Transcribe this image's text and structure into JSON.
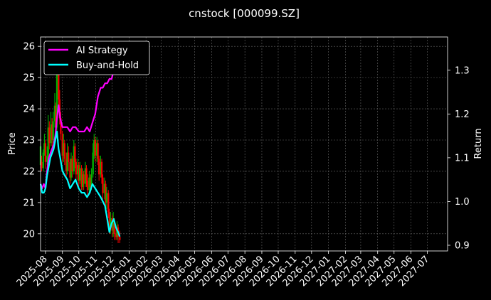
{
  "chart_data": {
    "type": "line",
    "title": "cnstock [000099.SZ]",
    "xlabel": "",
    "ylabel": "Price",
    "y2label": "Return",
    "x_ticks": [
      "2025-08",
      "2025-09",
      "2025-10",
      "2025-11",
      "2025-12",
      "2026-01",
      "2026-02",
      "2026-03",
      "2026-04",
      "2026-05",
      "2026-06",
      "2026-07",
      "2026-08",
      "2026-09",
      "2026-10",
      "2026-11",
      "2026-12",
      "2027-01",
      "2027-02",
      "2027-03",
      "2027-04",
      "2027-05",
      "2027-06",
      "2027-07"
    ],
    "xlim": [
      "2025-07-23",
      "2027-08-07"
    ],
    "ylim": [
      19.45,
      26.3
    ],
    "y_ticks": [
      20,
      21,
      22,
      23,
      24,
      25,
      26
    ],
    "y2lim": [
      0.887,
      1.376
    ],
    "y2_ticks": [
      0.9,
      1.0,
      1.1,
      1.2,
      1.3
    ],
    "grid": true,
    "legend_position": "top-left",
    "colors": {
      "background": "#000000",
      "up": "#00c000",
      "down": "#ff0000",
      "ai": "#ff00ff",
      "bh": "#00ffff",
      "grid": "#666666"
    },
    "legend": [
      "AI Strategy",
      "Buy-and-Hold"
    ],
    "price_bars": [
      [
        "2025-07-23",
        22.2,
        22.8,
        22.3,
        22.9,
        21.9
      ],
      [
        "2025-07-25",
        22.3,
        22.1,
        22.5,
        22.0,
        21.8
      ],
      [
        "2025-07-28",
        22.1,
        22.6,
        22.7,
        22.0,
        21.9
      ],
      [
        "2025-07-30",
        22.6,
        22.9,
        23.2,
        22.5,
        22.3
      ],
      [
        "2025-08-01",
        22.9,
        22.3,
        23.0,
        22.1,
        21.8
      ],
      [
        "2025-08-04",
        22.3,
        22.5,
        22.8,
        22.2,
        22.0
      ],
      [
        "2025-08-06",
        22.5,
        23.4,
        23.8,
        22.4,
        22.2
      ],
      [
        "2025-08-08",
        23.4,
        22.9,
        23.6,
        22.7,
        22.4
      ],
      [
        "2025-08-11",
        22.9,
        23.5,
        23.9,
        22.8,
        22.6
      ],
      [
        "2025-08-13",
        23.5,
        23.0,
        23.7,
        22.8,
        22.6
      ],
      [
        "2025-08-15",
        23.0,
        23.6,
        23.9,
        22.9,
        22.7
      ],
      [
        "2025-08-18",
        23.6,
        24.1,
        24.5,
        23.4,
        23.2
      ],
      [
        "2025-08-20",
        24.1,
        23.4,
        24.2,
        23.2,
        22.9
      ],
      [
        "2025-08-22",
        23.4,
        25.2,
        25.8,
        23.3,
        23.1
      ],
      [
        "2025-08-25",
        25.2,
        24.3,
        25.4,
        24.1,
        23.8
      ],
      [
        "2025-08-27",
        24.3,
        23.7,
        24.6,
        23.5,
        23.2
      ],
      [
        "2025-08-29",
        23.7,
        23.2,
        23.9,
        23.0,
        22.7
      ],
      [
        "2025-09-01",
        23.2,
        22.5,
        23.3,
        22.3,
        22.0
      ],
      [
        "2025-09-03",
        22.5,
        22.9,
        23.2,
        22.3,
        22.1
      ],
      [
        "2025-09-05",
        22.9,
        22.4,
        23.0,
        22.2,
        21.9
      ],
      [
        "2025-09-08",
        22.4,
        22.0,
        22.6,
        21.8,
        21.5
      ],
      [
        "2025-09-10",
        22.0,
        22.6,
        22.9,
        21.9,
        21.7
      ],
      [
        "2025-09-12",
        22.6,
        22.3,
        22.8,
        22.0,
        21.8
      ],
      [
        "2025-09-15",
        22.3,
        21.8,
        22.4,
        21.6,
        21.3
      ],
      [
        "2025-09-17",
        21.8,
        22.4,
        22.6,
        21.7,
        21.5
      ],
      [
        "2025-09-19",
        22.4,
        22.0,
        22.5,
        21.8,
        21.6
      ],
      [
        "2025-09-22",
        22.0,
        22.8,
        23.0,
        21.9,
        21.8
      ],
      [
        "2025-09-24",
        22.8,
        22.3,
        22.9,
        22.1,
        21.9
      ],
      [
        "2025-09-26",
        22.3,
        21.9,
        22.4,
        21.7,
        21.5
      ],
      [
        "2025-09-29",
        21.9,
        22.2,
        22.4,
        21.7,
        21.6
      ],
      [
        "2025-10-01",
        22.2,
        21.7,
        22.3,
        21.5,
        21.3
      ],
      [
        "2025-10-03",
        21.7,
        22.1,
        22.3,
        21.6,
        21.4
      ],
      [
        "2025-10-06",
        22.1,
        21.5,
        22.2,
        21.4,
        21.1
      ],
      [
        "2025-10-08",
        21.5,
        21.9,
        22.1,
        21.4,
        21.2
      ],
      [
        "2025-10-10",
        21.9,
        21.6,
        22.0,
        21.4,
        21.2
      ],
      [
        "2025-10-13",
        21.6,
        22.1,
        22.3,
        21.5,
        21.3
      ],
      [
        "2025-10-15",
        22.1,
        21.7,
        22.2,
        21.5,
        21.3
      ],
      [
        "2025-10-17",
        21.7,
        21.4,
        21.9,
        21.2,
        21.0
      ],
      [
        "2025-10-20",
        21.4,
        21.8,
        22.0,
        21.3,
        21.1
      ],
      [
        "2025-10-22",
        21.8,
        21.5,
        21.9,
        21.3,
        21.1
      ],
      [
        "2025-10-24",
        21.5,
        21.9,
        22.1,
        21.4,
        21.2
      ],
      [
        "2025-10-27",
        21.9,
        22.6,
        22.9,
        21.8,
        21.6
      ],
      [
        "2025-10-29",
        22.6,
        23.0,
        23.2,
        22.4,
        22.2
      ],
      [
        "2025-10-31",
        23.0,
        22.5,
        23.1,
        22.3,
        22.0
      ],
      [
        "2025-11-03",
        22.5,
        22.9,
        23.1,
        22.3,
        22.1
      ],
      [
        "2025-11-05",
        22.9,
        22.4,
        23.0,
        22.2,
        21.9
      ],
      [
        "2025-11-07",
        22.4,
        21.9,
        22.5,
        21.7,
        21.5
      ],
      [
        "2025-11-10",
        21.9,
        22.3,
        22.5,
        21.8,
        21.6
      ],
      [
        "2025-11-12",
        22.3,
        21.8,
        22.4,
        21.6,
        21.3
      ],
      [
        "2025-11-14",
        21.8,
        21.3,
        21.9,
        21.1,
        20.9
      ],
      [
        "2025-11-17",
        21.3,
        21.6,
        21.8,
        21.1,
        20.9
      ],
      [
        "2025-11-19",
        21.6,
        21.0,
        21.7,
        20.8,
        20.6
      ],
      [
        "2025-11-21",
        21.0,
        21.3,
        21.5,
        20.8,
        20.6
      ],
      [
        "2025-11-24",
        21.3,
        20.7,
        21.4,
        20.5,
        20.3
      ],
      [
        "2025-11-26",
        20.7,
        20.2,
        20.8,
        20.0,
        19.8
      ],
      [
        "2025-11-28",
        20.2,
        20.5,
        20.7,
        20.0,
        19.9
      ],
      [
        "2025-12-01",
        20.5,
        20.1,
        20.6,
        19.9,
        19.7
      ],
      [
        "2025-12-03",
        20.1,
        20.4,
        20.7,
        19.9,
        19.8
      ],
      [
        "2025-12-05",
        20.4,
        20.0,
        20.5,
        19.8,
        19.6
      ],
      [
        "2025-12-08",
        20.0,
        19.9,
        20.2,
        19.8,
        19.6
      ],
      [
        "2025-12-10",
        19.9,
        20.2,
        20.4,
        19.8,
        19.7
      ],
      [
        "2025-12-12",
        20.2,
        19.9,
        20.3,
        19.7,
        19.5
      ],
      [
        "2025-12-15",
        19.9,
        19.8,
        20.1,
        19.7,
        19.5
      ]
    ],
    "series": [
      {
        "name": "AI Strategy",
        "points": [
          [
            "2025-07-23",
            1.04
          ],
          [
            "2025-07-26",
            1.03
          ],
          [
            "2025-07-29",
            1.04
          ],
          [
            "2025-08-01",
            1.03
          ],
          [
            "2025-08-04",
            1.07
          ],
          [
            "2025-08-07",
            1.1
          ],
          [
            "2025-08-10",
            1.11
          ],
          [
            "2025-08-13",
            1.12
          ],
          [
            "2025-08-16",
            1.13
          ],
          [
            "2025-08-19",
            1.15
          ],
          [
            "2025-08-22",
            1.19
          ],
          [
            "2025-08-25",
            1.22
          ],
          [
            "2025-08-28",
            1.19
          ],
          [
            "2025-09-01",
            1.17
          ],
          [
            "2025-09-05",
            1.17
          ],
          [
            "2025-09-10",
            1.17
          ],
          [
            "2025-09-15",
            1.16
          ],
          [
            "2025-09-20",
            1.17
          ],
          [
            "2025-09-25",
            1.17
          ],
          [
            "2025-10-01",
            1.16
          ],
          [
            "2025-10-06",
            1.16
          ],
          [
            "2025-10-11",
            1.16
          ],
          [
            "2025-10-16",
            1.17
          ],
          [
            "2025-10-21",
            1.16
          ],
          [
            "2025-10-26",
            1.18
          ],
          [
            "2025-10-31",
            1.2
          ],
          [
            "2025-11-05",
            1.24
          ],
          [
            "2025-11-10",
            1.26
          ],
          [
            "2025-11-14",
            1.26
          ],
          [
            "2025-11-18",
            1.27
          ],
          [
            "2025-11-22",
            1.27
          ],
          [
            "2025-11-26",
            1.28
          ],
          [
            "2025-11-30",
            1.28
          ],
          [
            "2025-12-04",
            1.3
          ],
          [
            "2025-12-08",
            1.32
          ],
          [
            "2025-12-12",
            1.34
          ],
          [
            "2025-12-15",
            1.34
          ]
        ]
      },
      {
        "name": "Buy-and-Hold",
        "points": [
          [
            "2025-07-23",
            1.04
          ],
          [
            "2025-07-26",
            1.02
          ],
          [
            "2025-07-29",
            1.02
          ],
          [
            "2025-08-01",
            1.03
          ],
          [
            "2025-08-04",
            1.06
          ],
          [
            "2025-08-07",
            1.08
          ],
          [
            "2025-08-10",
            1.1
          ],
          [
            "2025-08-13",
            1.11
          ],
          [
            "2025-08-16",
            1.12
          ],
          [
            "2025-08-19",
            1.14
          ],
          [
            "2025-08-22",
            1.16
          ],
          [
            "2025-08-25",
            1.12
          ],
          [
            "2025-08-28",
            1.1
          ],
          [
            "2025-09-01",
            1.07
          ],
          [
            "2025-09-05",
            1.06
          ],
          [
            "2025-09-10",
            1.05
          ],
          [
            "2025-09-15",
            1.03
          ],
          [
            "2025-09-20",
            1.04
          ],
          [
            "2025-09-25",
            1.05
          ],
          [
            "2025-10-01",
            1.03
          ],
          [
            "2025-10-06",
            1.02
          ],
          [
            "2025-10-11",
            1.02
          ],
          [
            "2025-10-16",
            1.01
          ],
          [
            "2025-10-21",
            1.02
          ],
          [
            "2025-10-26",
            1.04
          ],
          [
            "2025-10-31",
            1.03
          ],
          [
            "2025-11-05",
            1.02
          ],
          [
            "2025-11-10",
            1.01
          ],
          [
            "2025-11-14",
            1.0
          ],
          [
            "2025-11-18",
            0.99
          ],
          [
            "2025-11-22",
            0.96
          ],
          [
            "2025-11-26",
            0.93
          ],
          [
            "2025-11-30",
            0.95
          ],
          [
            "2025-12-04",
            0.96
          ],
          [
            "2025-12-08",
            0.94
          ],
          [
            "2025-12-12",
            0.93
          ],
          [
            "2025-12-15",
            0.92
          ]
        ]
      }
    ]
  }
}
